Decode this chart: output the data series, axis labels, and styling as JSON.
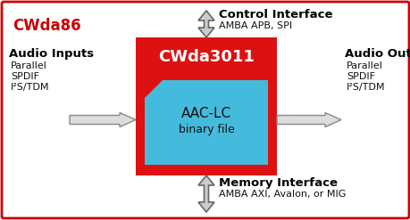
{
  "outer_border_color": "#cc0000",
  "outer_bg": "#ffffff",
  "chip_color": "#dd1111",
  "core_color": "#44bbdd",
  "chip_label": "CWda3011",
  "chip_label_color": "#ffffff",
  "core_label_line1": "AAC-LC",
  "core_label_line2": "binary file",
  "core_label_color": "#111111",
  "cwda86_label": "CWda86",
  "cwda86_color": "#cc0000",
  "control_title": "Control Interface",
  "control_sub": "AMBA APB, SPI",
  "memory_title": "Memory Interface",
  "memory_sub": "AMBA AXI, Avalon, or MIG",
  "audio_in_title": "Audio Inputs",
  "audio_in_sub_1": "Parallel",
  "audio_in_sub_2": "SPDIF",
  "audio_in_sub_3": "I²S/TDM",
  "audio_out_title": "Audio Outputs",
  "audio_out_sub_1": "Parallel",
  "audio_out_sub_2": "SPDIF",
  "audio_out_sub_3": "I²S/TDM",
  "arrow_face": "#dddddd",
  "arrow_edge": "#888888",
  "darrow_face": "#cccccc",
  "darrow_edge": "#666666",
  "fig_w": 4.6,
  "fig_h": 2.47,
  "dpi": 100
}
